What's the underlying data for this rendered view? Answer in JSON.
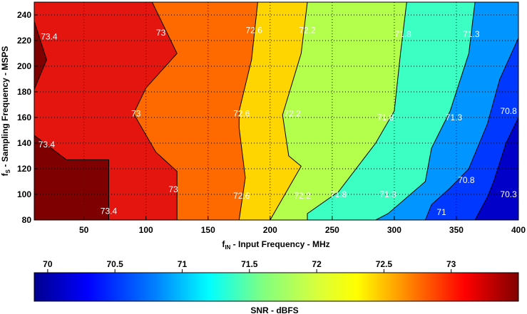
{
  "chart_data": {
    "type": "contour",
    "xlabel": {
      "main": "f",
      "sub": "IN",
      "rest": " - Input Frequency - MHz"
    },
    "ylabel": {
      "main": "f",
      "sub": "S",
      "rest": " - Sampling Frequency - MSPS"
    },
    "xlim": [
      10,
      400
    ],
    "ylim": [
      80,
      250
    ],
    "x_ticks": [
      50,
      100,
      150,
      200,
      250,
      300,
      350,
      400
    ],
    "y_ticks": [
      80,
      100,
      120,
      140,
      160,
      180,
      200,
      220,
      240
    ],
    "grid": true,
    "levels": [
      {
        "value": 73.4,
        "color": "#7f0000"
      },
      {
        "value": 73.0,
        "color": "#e4140f"
      },
      {
        "value": 72.6,
        "color": "#ff6a00"
      },
      {
        "value": 72.2,
        "color": "#ffd500"
      },
      {
        "value": 71.8,
        "color": "#b4ff4b"
      },
      {
        "value": 71.3,
        "color": "#3cffc3"
      },
      {
        "value": 70.8,
        "color": "#0095ff"
      },
      {
        "value": 70.3,
        "color": "#0038ff"
      },
      {
        "value": 70.0,
        "color": "#0000c8"
      }
    ],
    "contours": [
      {
        "value": 73.4,
        "points": [
          [
            10,
            182
          ],
          [
            20,
            205
          ],
          [
            10,
            235
          ]
        ]
      },
      {
        "value": 73.4,
        "points": [
          [
            10,
            146
          ],
          [
            36,
            127
          ],
          [
            70,
            127
          ],
          [
            70,
            80
          ]
        ]
      },
      {
        "value": 73.0,
        "points": [
          [
            105,
            250
          ],
          [
            125,
            210
          ],
          [
            100,
            183
          ],
          [
            90,
            163
          ],
          [
            108,
            133
          ],
          [
            125,
            118
          ],
          [
            125,
            80
          ]
        ]
      },
      {
        "value": 72.6,
        "points": [
          [
            190,
            250
          ],
          [
            185,
            205
          ],
          [
            175,
            165
          ],
          [
            175,
            152
          ],
          [
            180,
            113
          ],
          [
            175,
            80
          ]
        ]
      },
      {
        "value": 72.2,
        "points": [
          [
            230,
            250
          ],
          [
            225,
            210
          ],
          [
            210,
            162
          ],
          [
            215,
            130
          ],
          [
            225,
            122
          ],
          [
            200,
            80
          ]
        ]
      },
      {
        "value": 71.8,
        "points": [
          [
            310,
            250
          ],
          [
            305,
            210
          ],
          [
            300,
            165
          ],
          [
            285,
            140
          ],
          [
            255,
            102
          ],
          [
            230,
            85
          ],
          [
            230,
            80
          ]
        ]
      },
      {
        "value": 71.3,
        "points": [
          [
            365,
            250
          ],
          [
            360,
            210
          ],
          [
            345,
            165
          ],
          [
            330,
            136
          ],
          [
            325,
            110
          ],
          [
            295,
            85
          ],
          [
            285,
            80
          ]
        ]
      },
      {
        "value": 70.8,
        "points": [
          [
            400,
            222
          ],
          [
            385,
            190
          ],
          [
            375,
            155
          ],
          [
            360,
            120
          ],
          [
            345,
            105
          ],
          [
            330,
            92
          ],
          [
            325,
            80
          ]
        ]
      },
      {
        "value": 70.3,
        "points": [
          [
            400,
            160
          ],
          [
            390,
            140
          ],
          [
            380,
            110
          ],
          [
            375,
            98
          ],
          [
            365,
            80
          ]
        ]
      }
    ],
    "contour_labels": [
      {
        "text": "73.4",
        "x": 22,
        "y": 223
      },
      {
        "text": "73",
        "x": 112,
        "y": 226
      },
      {
        "text": "72.6",
        "x": 187,
        "y": 228
      },
      {
        "text": "72.2",
        "x": 230,
        "y": 228
      },
      {
        "text": "71.8",
        "x": 307,
        "y": 225
      },
      {
        "text": "71.3",
        "x": 362,
        "y": 225
      },
      {
        "text": "73",
        "x": 92,
        "y": 163
      },
      {
        "text": "72.6",
        "x": 177,
        "y": 163
      },
      {
        "text": "72.2",
        "x": 218,
        "y": 163
      },
      {
        "text": "71.8",
        "x": 293,
        "y": 160
      },
      {
        "text": "71.3",
        "x": 348,
        "y": 160
      },
      {
        "text": "70.8",
        "x": 392,
        "y": 165
      },
      {
        "text": "73.4",
        "x": 20,
        "y": 139
      },
      {
        "text": "73",
        "x": 122,
        "y": 104
      },
      {
        "text": "72.6",
        "x": 177,
        "y": 99
      },
      {
        "text": "72.2",
        "x": 226,
        "y": 99
      },
      {
        "text": "71.8",
        "x": 255,
        "y": 100
      },
      {
        "text": "71.3",
        "x": 295,
        "y": 100
      },
      {
        "text": "70.8",
        "x": 358,
        "y": 111
      },
      {
        "text": "70.3",
        "x": 392,
        "y": 100
      },
      {
        "text": "73.4",
        "x": 70,
        "y": 87
      },
      {
        "text": "71",
        "x": 338,
        "y": 86
      }
    ],
    "colorbar": {
      "label": "SNR - dBFS",
      "range": [
        69.9,
        73.5
      ],
      "ticks": [
        {
          "value": 70,
          "label": "70"
        },
        {
          "value": 70.5,
          "label": "70.5"
        },
        {
          "value": 71,
          "label": "71"
        },
        {
          "value": 71.5,
          "label": "71.5"
        },
        {
          "value": 72,
          "label": "72"
        },
        {
          "value": 72.5,
          "label": "72.5"
        },
        {
          "value": 73,
          "label": "73"
        }
      ],
      "stops": [
        {
          "value": 69.9,
          "color": "#00008f"
        },
        {
          "value": 70.3,
          "color": "#0000ff"
        },
        {
          "value": 70.8,
          "color": "#0080ff"
        },
        {
          "value": 71.2,
          "color": "#00ffff"
        },
        {
          "value": 71.6,
          "color": "#80ff80"
        },
        {
          "value": 72.0,
          "color": "#d8ff3c"
        },
        {
          "value": 72.3,
          "color": "#ffff00"
        },
        {
          "value": 72.7,
          "color": "#ff8000"
        },
        {
          "value": 73.1,
          "color": "#ff0000"
        },
        {
          "value": 73.5,
          "color": "#800000"
        }
      ]
    }
  }
}
